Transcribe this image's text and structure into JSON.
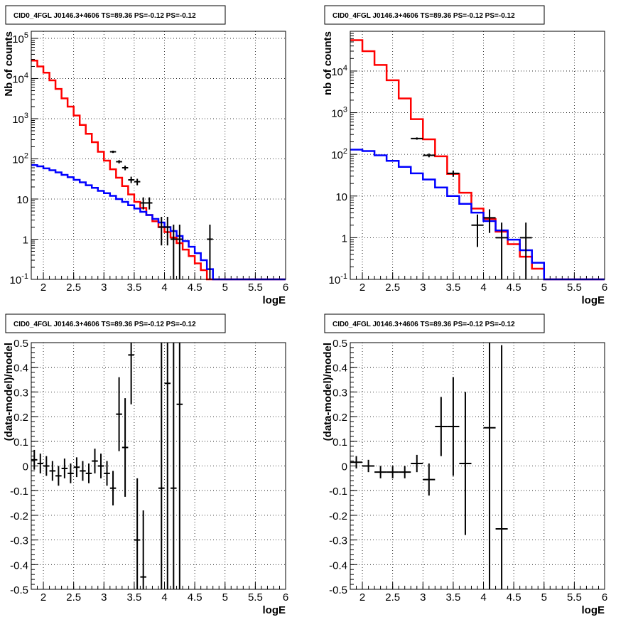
{
  "chart_data": [
    {
      "type": "line",
      "title": "CID0_4FGL J0146.3+4606 TS=89.36 PS=-0.12 PS=-0.12",
      "xlabel": "logE",
      "ylabel": "Nb of counts",
      "log_y": true,
      "xlim": [
        1.8,
        6.0
      ],
      "ylim": [
        0.1,
        150000
      ],
      "grid": true,
      "x_ticks": [
        "2",
        "2.5",
        "3",
        "3.5",
        "4",
        "4.5",
        "5",
        "5.5",
        "6"
      ],
      "y_ticks": [
        "10^-1",
        "1",
        "10",
        "10^2",
        "10^3",
        "10^4",
        "10^5"
      ],
      "bin_edges": [
        1.8,
        1.9,
        2.0,
        2.1,
        2.2,
        2.3,
        2.4,
        2.5,
        2.6,
        2.7,
        2.8,
        2.9,
        3.0,
        3.1,
        3.2,
        3.3,
        3.4,
        3.5,
        3.6,
        3.7,
        3.8,
        3.9,
        4.0,
        4.1,
        4.2,
        4.3,
        4.4,
        4.5,
        4.6,
        4.7,
        4.8,
        4.9,
        5.0,
        5.1,
        5.2,
        5.3,
        5.4,
        5.5,
        5.6,
        5.7,
        5.8,
        5.9,
        6.0
      ],
      "series": [
        {
          "role": "total-model",
          "color": "#ff0000",
          "values": [
            28000,
            20000,
            14000,
            9000,
            5500,
            3200,
            2000,
            1200,
            700,
            420,
            260,
            150,
            90,
            55,
            34,
            21,
            13,
            8.5,
            6.0,
            4.0,
            2.8,
            2.0,
            1.5,
            1.1,
            0.8,
            0.55,
            0.38,
            0.25,
            0.17,
            0.1,
            0.1,
            0.1,
            0.1,
            0.1,
            0.1,
            0.1,
            0.1,
            0.1,
            0.1,
            0.1,
            0.1,
            0.1
          ]
        },
        {
          "role": "source-model",
          "color": "#0000ff",
          "values": [
            70,
            65,
            58,
            52,
            46,
            40,
            35,
            30,
            26,
            22,
            19,
            16,
            14,
            12,
            10,
            8.5,
            7.0,
            5.8,
            4.8,
            4.0,
            3.2,
            2.6,
            2.0,
            1.6,
            1.2,
            0.9,
            0.65,
            0.45,
            0.3,
            0.18,
            0.1,
            0.1,
            0.1,
            0.1,
            0.1,
            0.1,
            0.1,
            0.1,
            0.1,
            0.1,
            0.1,
            0.1
          ]
        }
      ],
      "points": [
        {
          "x": 3.15,
          "y": 150,
          "ylo": 140,
          "yhi": 160,
          "xerr": 0.05
        },
        {
          "x": 3.25,
          "y": 85,
          "ylo": 77,
          "yhi": 93,
          "xerr": 0.05
        },
        {
          "x": 3.35,
          "y": 60,
          "ylo": 52,
          "yhi": 68,
          "xerr": 0.05
        },
        {
          "x": 3.45,
          "y": 30,
          "ylo": 25,
          "yhi": 36,
          "xerr": 0.05
        },
        {
          "x": 3.55,
          "y": 27,
          "ylo": 22,
          "yhi": 32,
          "xerr": 0.05
        },
        {
          "x": 3.65,
          "y": 8,
          "ylo": 5.5,
          "yhi": 11,
          "xerr": 0.05
        },
        {
          "x": 3.75,
          "y": 8,
          "ylo": 5.5,
          "yhi": 11,
          "xerr": 0.05
        },
        {
          "x": 3.95,
          "y": 2,
          "ylo": 0.7,
          "yhi": 3.6,
          "xerr": 0.05
        },
        {
          "x": 4.05,
          "y": 2,
          "ylo": 0.7,
          "yhi": 3.6,
          "xerr": 0.05
        },
        {
          "x": 4.15,
          "y": 1,
          "ylo": 0.1,
          "yhi": 2.3,
          "xerr": 0.05
        },
        {
          "x": 4.25,
          "y": 1,
          "ylo": 0.1,
          "yhi": 2.3,
          "xerr": 0.05
        },
        {
          "x": 4.75,
          "y": 1,
          "ylo": 0.1,
          "yhi": 2.3,
          "xerr": 0.05
        }
      ]
    },
    {
      "type": "line",
      "title": "CID0_4FGL J0146.3+4606 TS=89.36 PS=-0.12 PS=-0.12",
      "xlabel": "logE",
      "ylabel": "nb of counts",
      "log_y": true,
      "xlim": [
        1.8,
        6.0
      ],
      "ylim": [
        0.1,
        90000
      ],
      "grid": true,
      "x_ticks": [
        "2",
        "2.5",
        "3",
        "3.5",
        "4",
        "4.5",
        "5",
        "5.5",
        "6"
      ],
      "y_ticks": [
        "10^-1",
        "1",
        "10",
        "10^2",
        "10^3",
        "10^4"
      ],
      "bin_edges": [
        1.8,
        2.0,
        2.2,
        2.4,
        2.6,
        2.8,
        3.0,
        3.2,
        3.4,
        3.6,
        3.8,
        4.0,
        4.2,
        4.4,
        4.6,
        4.8,
        5.0,
        5.2,
        5.4,
        5.6,
        5.8,
        6.0
      ],
      "series": [
        {
          "role": "total-model",
          "color": "#ff0000",
          "values": [
            55000,
            30000,
            14000,
            6000,
            2200,
            700,
            230,
            90,
            34,
            12,
            5,
            2.8,
            1.4,
            0.7,
            0.35,
            0.18,
            0.1,
            0.1,
            0.1,
            0.1,
            0.1
          ]
        },
        {
          "role": "source-model",
          "color": "#0000ff",
          "values": [
            130,
            120,
            95,
            70,
            50,
            35,
            25,
            16,
            10,
            6.5,
            4.0,
            2.5,
            1.5,
            0.9,
            0.5,
            0.25,
            0.1,
            0.1,
            0.1,
            0.1,
            0.1
          ]
        }
      ],
      "points": [
        {
          "x": 2.9,
          "y": 240,
          "ylo": 225,
          "yhi": 255,
          "xerr": 0.1
        },
        {
          "x": 3.1,
          "y": 95,
          "ylo": 85,
          "yhi": 105,
          "xerr": 0.1
        },
        {
          "x": 3.5,
          "y": 35,
          "ylo": 29,
          "yhi": 41,
          "xerr": 0.1
        },
        {
          "x": 3.9,
          "y": 2,
          "ylo": 0.6,
          "yhi": 3.6,
          "xerr": 0.1
        },
        {
          "x": 4.1,
          "y": 3,
          "ylo": 1.3,
          "yhi": 4.8,
          "xerr": 0.1
        },
        {
          "x": 4.3,
          "y": 1,
          "ylo": 0.1,
          "yhi": 2.3,
          "xerr": 0.1
        },
        {
          "x": 4.7,
          "y": 1,
          "ylo": 0.1,
          "yhi": 2.3,
          "xerr": 0.1
        }
      ]
    },
    {
      "type": "scatter",
      "title": "CID0_4FGL J0146.3+4606 TS=89.36 PS=-0.12 PS=-0.12",
      "xlabel": "logE",
      "ylabel": "(data-model)/model",
      "xlim": [
        1.8,
        6.0
      ],
      "ylim": [
        -0.5,
        0.5
      ],
      "grid": true,
      "x_ticks": [
        "2",
        "2.5",
        "3",
        "3.5",
        "4",
        "4.5",
        "5",
        "5.5",
        "6"
      ],
      "y_ticks": [
        "-0.5",
        "-0.4",
        "-0.3",
        "-0.2",
        "-0.1",
        "0",
        "0.1",
        "0.2",
        "0.3",
        "0.4",
        "0.5"
      ],
      "points": [
        {
          "x": 1.85,
          "y": 0.025,
          "yerr": 0.04,
          "xerr": 0.05
        },
        {
          "x": 1.95,
          "y": 0.01,
          "yerr": 0.04,
          "xerr": 0.05
        },
        {
          "x": 2.05,
          "y": 0.0,
          "yerr": 0.04,
          "xerr": 0.05
        },
        {
          "x": 2.15,
          "y": -0.02,
          "yerr": 0.04,
          "xerr": 0.05
        },
        {
          "x": 2.25,
          "y": -0.04,
          "yerr": 0.04,
          "xerr": 0.05
        },
        {
          "x": 2.35,
          "y": -0.01,
          "yerr": 0.04,
          "xerr": 0.05
        },
        {
          "x": 2.45,
          "y": -0.03,
          "yerr": 0.04,
          "xerr": 0.05
        },
        {
          "x": 2.55,
          "y": -0.005,
          "yerr": 0.04,
          "xerr": 0.05
        },
        {
          "x": 2.65,
          "y": -0.02,
          "yerr": 0.04,
          "xerr": 0.05
        },
        {
          "x": 2.75,
          "y": -0.03,
          "yerr": 0.04,
          "xerr": 0.05
        },
        {
          "x": 2.85,
          "y": 0.02,
          "yerr": 0.05,
          "xerr": 0.05
        },
        {
          "x": 2.95,
          "y": 0.0,
          "yerr": 0.05,
          "xerr": 0.05
        },
        {
          "x": 3.05,
          "y": -0.03,
          "yerr": 0.05,
          "xerr": 0.05
        },
        {
          "x": 3.15,
          "y": -0.09,
          "yerr": 0.07,
          "xerr": 0.05
        },
        {
          "x": 3.25,
          "y": 0.21,
          "yerr": 0.15,
          "xerr": 0.05
        },
        {
          "x": 3.35,
          "y": 0.075,
          "yerr": 0.2,
          "xerr": 0.05
        },
        {
          "x": 3.45,
          "y": 0.45,
          "yerr": 0.2,
          "xerr": 0.05
        },
        {
          "x": 3.55,
          "y": -0.3,
          "yerr": 0.25,
          "xerr": 0.05
        },
        {
          "x": 3.65,
          "y": -0.45,
          "yerr": 0.27,
          "xerr": 0.05
        },
        {
          "x": 3.95,
          "y": -0.09,
          "yerr": 0.6,
          "xerr": 0.05
        },
        {
          "x": 4.05,
          "y": 0.335,
          "yerr": 0.9,
          "xerr": 0.05
        },
        {
          "x": 4.15,
          "y": -0.09,
          "yerr": 1.0,
          "xerr": 0.05
        },
        {
          "x": 4.25,
          "y": 0.25,
          "yerr": 1.0,
          "xerr": 0.05
        }
      ]
    },
    {
      "type": "scatter",
      "title": "CID0_4FGL J0146.3+4606 TS=89.36 PS=-0.12 PS=-0.12",
      "xlabel": "logE",
      "ylabel": "(data-model)/model",
      "xlim": [
        1.8,
        6.0
      ],
      "ylim": [
        -0.5,
        0.5
      ],
      "grid": true,
      "x_ticks": [
        "2",
        "2.5",
        "3",
        "3.5",
        "4",
        "4.5",
        "5",
        "5.5",
        "6"
      ],
      "y_ticks": [
        "-0.5",
        "-0.4",
        "-0.3",
        "-0.2",
        "-0.1",
        "0",
        "0.1",
        "0.2",
        "0.3",
        "0.4",
        "0.5"
      ],
      "points": [
        {
          "x": 1.9,
          "y": 0.015,
          "yerr": 0.025,
          "xerr": 0.1
        },
        {
          "x": 2.1,
          "y": 0.0,
          "yerr": 0.025,
          "xerr": 0.1
        },
        {
          "x": 2.3,
          "y": -0.025,
          "yerr": 0.025,
          "xerr": 0.1
        },
        {
          "x": 2.5,
          "y": -0.025,
          "yerr": 0.025,
          "xerr": 0.1
        },
        {
          "x": 2.7,
          "y": -0.025,
          "yerr": 0.025,
          "xerr": 0.1
        },
        {
          "x": 2.9,
          "y": 0.01,
          "yerr": 0.035,
          "xerr": 0.1
        },
        {
          "x": 3.1,
          "y": -0.055,
          "yerr": 0.065,
          "xerr": 0.1
        },
        {
          "x": 3.3,
          "y": 0.16,
          "yerr": 0.12,
          "xerr": 0.1
        },
        {
          "x": 3.5,
          "y": 0.16,
          "yerr": 0.2,
          "xerr": 0.1
        },
        {
          "x": 3.7,
          "y": 0.01,
          "yerr": 0.29,
          "xerr": 0.1
        },
        {
          "x": 4.1,
          "y": 0.155,
          "yerr": 1.0,
          "xerr": 0.1
        },
        {
          "x": 4.3,
          "y": -0.255,
          "yerr": 0.745,
          "xerr": 0.1
        }
      ]
    }
  ]
}
